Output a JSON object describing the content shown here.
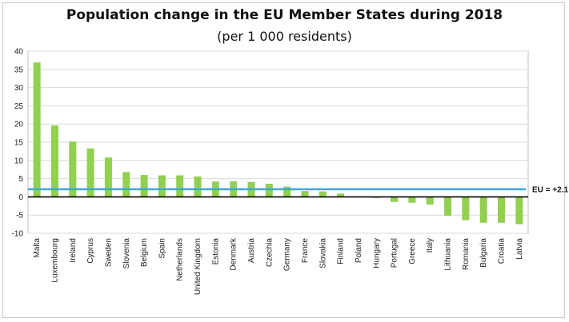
{
  "chart_data": {
    "type": "bar",
    "title": "Population change in the EU Member States during 2018",
    "subtitle": "(per 1 000 residents)",
    "xlabel": "",
    "ylabel": "",
    "ylim": [
      -10,
      40
    ],
    "yticks": [
      40,
      35,
      30,
      25,
      20,
      15,
      10,
      5,
      0,
      -5,
      -10
    ],
    "grid": true,
    "categories": [
      "Malta",
      "Luxembourg",
      "Ireland",
      "Cyprus",
      "Sweden",
      "Slovenia",
      "Belgium",
      "Spain",
      "Netherlands",
      "United Kingdom",
      "Estonia",
      "Denmark",
      "Austria",
      "Czechia",
      "Germany",
      "France",
      "Slovakia",
      "Finland",
      "Poland",
      "Hungary",
      "Portugal",
      "Greece",
      "Italy",
      "Lithuania",
      "Romania",
      "Bulgaria",
      "Croatia",
      "Latvia"
    ],
    "values": [
      36.9,
      19.6,
      15.2,
      13.3,
      10.8,
      6.8,
      6.0,
      5.9,
      5.9,
      5.6,
      4.2,
      4.3,
      4.1,
      3.6,
      2.8,
      1.6,
      1.5,
      0.9,
      0.0,
      -0.3,
      -1.4,
      -1.6,
      -2.1,
      -5.2,
      -6.4,
      -7.1,
      -7.1,
      -7.5
    ],
    "bar_color": "#92d050",
    "reference_line": {
      "label": "EU = +2.1",
      "value": 2.1,
      "color": "#3aa7e0"
    }
  }
}
